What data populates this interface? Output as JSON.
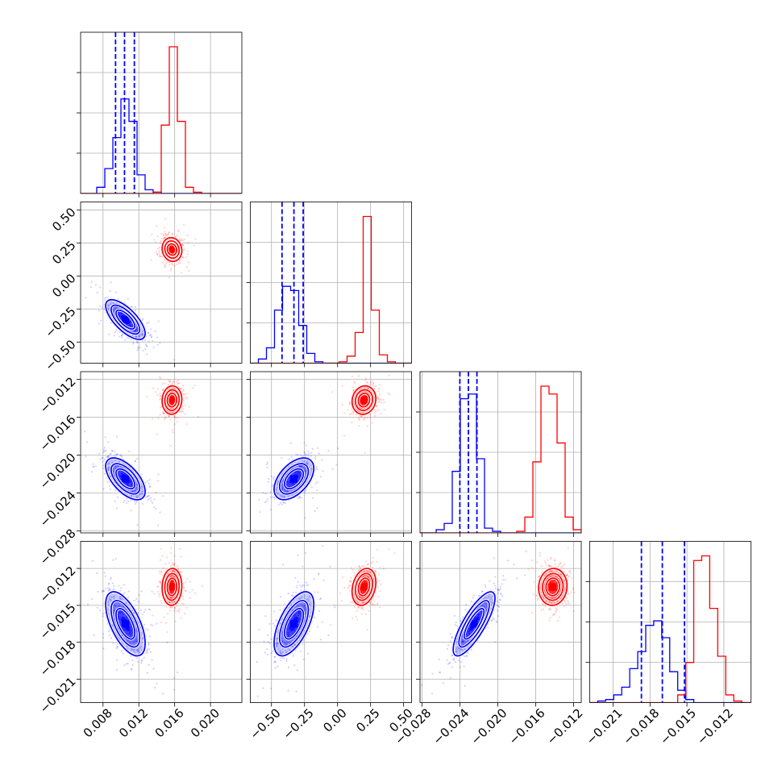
{
  "chart_data": {
    "type": "corner",
    "n_params": 4,
    "colors": {
      "series_a": "#0000ff",
      "series_b": "#ff0000",
      "grid": "#b0b0b0"
    },
    "axes": [
      {
        "range": [
          0.0055,
          0.0235
        ],
        "ticks": [
          0.008,
          0.012,
          0.016,
          0.02
        ],
        "tick_labels": [
          "0.008",
          "0.012",
          "0.016",
          "0.020"
        ]
      },
      {
        "range": [
          -0.66,
          0.56
        ],
        "ticks": [
          -0.5,
          -0.25,
          0.0,
          0.25,
          0.5
        ],
        "tick_labels": [
          "−0.50",
          "−0.25",
          "0.00",
          "0.25",
          "0.50"
        ]
      },
      {
        "range": [
          -0.0282,
          -0.0112
        ],
        "ticks": [
          -0.028,
          -0.024,
          -0.02,
          -0.016,
          -0.012
        ],
        "tick_labels": [
          "−0.028",
          "−0.024",
          "−0.020",
          "−0.016",
          "−0.012"
        ]
      },
      {
        "range": [
          -0.0229,
          -0.0098
        ],
        "ticks": [
          -0.021,
          -0.018,
          -0.015,
          -0.012
        ],
        "tick_labels": [
          "−0.021",
          "−0.018",
          "−0.015",
          "−0.012"
        ]
      }
    ],
    "series": [
      {
        "color": "#0000ff",
        "mean": [
          0.0105,
          -0.33,
          -0.0225,
          -0.0165
        ],
        "std": [
          0.0011,
          0.075,
          0.0011,
          0.0013
        ],
        "corr": [
          [
            1,
            -0.7,
            -0.6,
            -0.6
          ],
          [
            -0.7,
            1,
            0.5,
            0.6
          ],
          [
            -0.6,
            0.5,
            1,
            0.8
          ],
          [
            -0.6,
            0.6,
            0.8,
            1
          ]
        ],
        "quantiles": [
          [
            0.0094,
            0.0104,
            0.0115
          ],
          [
            -0.42,
            -0.33,
            -0.26
          ],
          [
            -0.024,
            -0.0231,
            -0.0222
          ],
          [
            -0.0187,
            -0.017,
            -0.0152
          ]
        ],
        "hist": [
          {
            "edges": [
              0.0055,
              0.0064,
              0.0073,
              0.0082,
              0.0091,
              0.01,
              0.0109,
              0.0118,
              0.0127,
              0.0136,
              0.0145,
              0.0154,
              0.0163,
              0.0172,
              0.0181,
              0.019,
              0.0199,
              0.0208,
              0.0217,
              0.0226,
              0.0235
            ],
            "counts": [
              0,
              0,
              0.05,
              0.2,
              0.45,
              0.76,
              0.58,
              0.15,
              0.03,
              0.01,
              0,
              0,
              0,
              0,
              0,
              0,
              0,
              0,
              0,
              0
            ]
          },
          {
            "edges": [
              -0.66,
              -0.599,
              -0.538,
              -0.477,
              -0.416,
              -0.355,
              -0.294,
              -0.233,
              -0.172,
              -0.111,
              -0.05,
              0.011,
              0.072,
              0.133,
              0.194,
              0.255,
              0.316,
              0.377,
              0.438,
              0.499,
              0.56
            ],
            "counts": [
              0,
              0.03,
              0.11,
              0.38,
              0.55,
              0.52,
              0.27,
              0.07,
              0.01,
              0,
              0,
              0,
              0,
              0,
              0,
              0,
              0,
              0,
              0,
              0
            ]
          },
          {
            "edges": [
              -0.0282,
              -0.02735,
              -0.0265,
              -0.02565,
              -0.0248,
              -0.02395,
              -0.0231,
              -0.02225,
              -0.0214,
              -0.02055,
              -0.0197,
              -0.01885,
              -0.018,
              -0.01715,
              -0.0163,
              -0.01545,
              -0.0146,
              -0.01375,
              -0.0129,
              -0.01205,
              -0.0112
            ],
            "counts": [
              0,
              0,
              0.02,
              0.06,
              0.39,
              0.85,
              0.88,
              0.47,
              0.03,
              0.01,
              0,
              0,
              0,
              0,
              0,
              0,
              0,
              0,
              0,
              0
            ]
          },
          {
            "edges": [
              -0.0229,
              -0.02225,
              -0.0216,
              -0.02095,
              -0.0203,
              -0.01965,
              -0.019,
              -0.01835,
              -0.0177,
              -0.01705,
              -0.0164,
              -0.01575,
              -0.0151,
              -0.01445,
              -0.0138,
              -0.01315,
              -0.0125,
              -0.01185,
              -0.0112,
              -0.01055,
              -0.0098
            ],
            "counts": [
              0,
              0.01,
              0.02,
              0.05,
              0.1,
              0.22,
              0.33,
              0.5,
              0.53,
              0.42,
              0.2,
              0.08,
              0.02,
              0,
              0,
              0,
              0,
              0,
              0,
              0
            ]
          }
        ]
      },
      {
        "color": "#ff0000",
        "mean": [
          0.0157,
          0.2,
          -0.0142,
          -0.0135
        ],
        "std": [
          0.00055,
          0.045,
          0.00075,
          0.00075
        ],
        "corr": [
          [
            1,
            -0.1,
            0.05,
            0.05
          ],
          [
            -0.1,
            1,
            0.1,
            0.25
          ],
          [
            0.05,
            0.1,
            1,
            0.05
          ],
          [
            0.05,
            0.25,
            0.05,
            1
          ]
        ],
        "hist": [
          {
            "edges": [
              0.0055,
              0.0064,
              0.0073,
              0.0082,
              0.0091,
              0.01,
              0.0109,
              0.0118,
              0.0127,
              0.0136,
              0.0145,
              0.0154,
              0.0163,
              0.0172,
              0.0181,
              0.019,
              0.0199,
              0.0208,
              0.0217,
              0.0226,
              0.0235
            ],
            "counts": [
              0,
              0,
              0,
              0,
              0,
              0,
              0,
              0,
              0,
              0.01,
              0.55,
              1.18,
              0.58,
              0.05,
              0.01,
              0,
              0,
              0,
              0,
              0
            ]
          },
          {
            "edges": [
              -0.66,
              -0.599,
              -0.538,
              -0.477,
              -0.416,
              -0.355,
              -0.294,
              -0.233,
              -0.172,
              -0.111,
              -0.05,
              0.011,
              0.072,
              0.133,
              0.194,
              0.255,
              0.316,
              0.377,
              0.438,
              0.499,
              0.56
            ],
            "counts": [
              0,
              0,
              0,
              0,
              0,
              0,
              0,
              0,
              0,
              0,
              0,
              0.01,
              0.05,
              0.22,
              1.05,
              0.38,
              0.06,
              0.01,
              0,
              0
            ]
          },
          {
            "edges": [
              -0.0282,
              -0.02735,
              -0.0265,
              -0.02565,
              -0.0248,
              -0.02395,
              -0.0231,
              -0.02225,
              -0.0214,
              -0.02055,
              -0.0197,
              -0.01885,
              -0.018,
              -0.01715,
              -0.0163,
              -0.01545,
              -0.0146,
              -0.01375,
              -0.0129,
              -0.01205,
              -0.0112
            ],
            "counts": [
              0,
              0,
              0,
              0,
              0,
              0,
              0,
              0,
              0,
              0,
              0,
              0,
              0.01,
              0.1,
              0.45,
              0.93,
              0.88,
              0.57,
              0.1,
              0.02
            ]
          },
          {
            "edges": [
              -0.0229,
              -0.02225,
              -0.0216,
              -0.02095,
              -0.0203,
              -0.01965,
              -0.019,
              -0.01835,
              -0.0177,
              -0.01705,
              -0.0164,
              -0.01575,
              -0.0151,
              -0.01445,
              -0.0138,
              -0.01315,
              -0.0125,
              -0.01185,
              -0.0112,
              -0.01055,
              -0.0098
            ],
            "counts": [
              0,
              0,
              0,
              0,
              0,
              0,
              0,
              0,
              0,
              0,
              0,
              0.05,
              0.26,
              0.92,
              0.95,
              0.61,
              0.3,
              0.05,
              0.01,
              0
            ]
          }
        ]
      }
    ],
    "grid": true
  }
}
